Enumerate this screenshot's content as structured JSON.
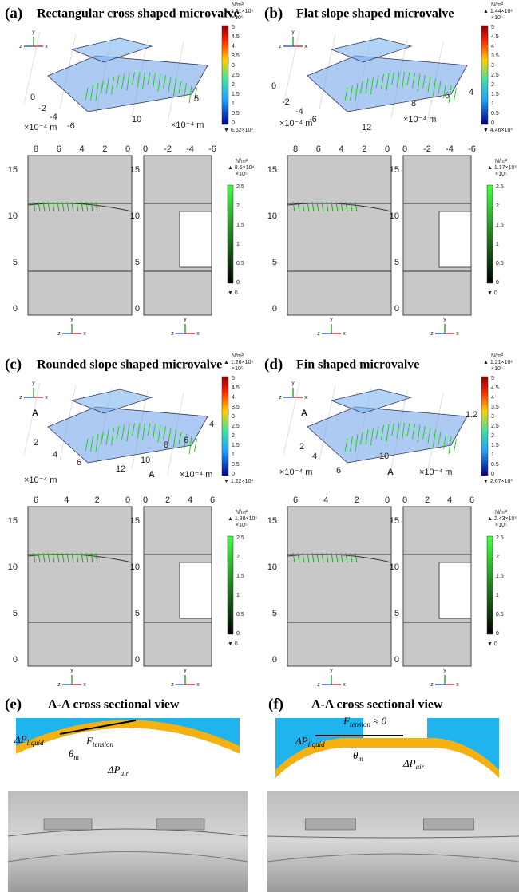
{
  "triad": [
    "y",
    "z",
    "x"
  ],
  "unit": "N/m²",
  "exp": "×10⁵",
  "colorbar3d_ticks": [
    "5",
    "4.5",
    "4",
    "3.5",
    "3",
    "2.5",
    "2",
    "1.5",
    "1",
    "0.5",
    "0"
  ],
  "colorbar2d_ticks": [
    "2.5",
    "2",
    "1.5",
    "1",
    "0.5",
    "0"
  ],
  "section_yticks": [
    "15",
    "10",
    "5",
    "0"
  ],
  "panels": [
    {
      "label": "(a)",
      "title": "Rectangular cross shaped microvalve",
      "axis3d": [
        "0",
        "-2",
        "-4",
        "-6",
        "×10⁻⁴ m",
        "10",
        "5",
        "×10⁻⁴ m"
      ],
      "max3d": "▲ 1.91×10⁶",
      "min3d": "▼ 6.62×10³",
      "max2d": "▲ 8.6×10⁴",
      "min2d": "▼ 0",
      "top_left_ticks": [
        "8",
        "6",
        "4",
        "2",
        "0"
      ],
      "top_right_ticks": [
        "0",
        "-2",
        "-4",
        "-6"
      ]
    },
    {
      "label": "(b)",
      "title": "Flat slope shaped microvalve",
      "axis3d": [
        "0",
        "-2",
        "-4",
        "-6",
        "12",
        "8",
        "6",
        "4",
        "×10⁻⁴ m",
        "×10⁻⁴ m"
      ],
      "max3d": "▲ 1.44×10⁶",
      "min3d": "▼ 4.46×10³",
      "max2d": "▲ 1.17×10⁵",
      "min2d": "▼ 0",
      "top_left_ticks": [
        "8",
        "6",
        "4",
        "2",
        "0"
      ],
      "top_right_ticks": [
        "0",
        "-2",
        "-4",
        "-6"
      ]
    },
    {
      "label": "(c)",
      "title": "Rounded slope shaped microvalve",
      "axis3d": [
        "A",
        "2",
        "4",
        "6",
        "12",
        "10",
        "8",
        "6",
        "4",
        "A",
        "×10⁻⁴ m",
        "×10⁻⁴ m"
      ],
      "max3d": "▲ 1.26×10⁶",
      "min3d": "▼ 1.22×10⁴",
      "max2d": "▲ 1.38×10⁵",
      "min2d": "▼ 0",
      "top_left_ticks": [
        "6",
        "4",
        "2",
        "0"
      ],
      "top_right_ticks": [
        "0",
        "2",
        "4",
        "6"
      ]
    },
    {
      "label": "(d)",
      "title": "Fin shaped microvalve",
      "axis3d": [
        "A",
        "1.2",
        "2",
        "4",
        "6",
        "10",
        "A",
        "×10⁻⁴ m",
        "×10⁻⁴ m"
      ],
      "max3d": "▲ 1.21×10⁶",
      "min3d": "▼ 2.67×10³",
      "max2d": "▲ 2.43×10⁵",
      "min2d": "▼ 0",
      "top_left_ticks": [
        "6",
        "4",
        "2",
        "0"
      ],
      "top_right_ticks": [
        "0",
        "2",
        "4",
        "6"
      ]
    }
  ],
  "sections": [
    {
      "label": "(e)",
      "title": "A-A cross sectional view",
      "annotations": [
        {
          "base": "ΔP",
          "sub": "liquid"
        },
        {
          "base": "F",
          "sub": "tension"
        },
        {
          "base": "θ",
          "sub": "m"
        },
        {
          "base": "ΔP",
          "sub": "air"
        }
      ]
    },
    {
      "label": "(f)",
      "title": "A-A cross sectional view",
      "annotations": [
        {
          "base": "ΔP",
          "sub": "liquid"
        },
        {
          "base": "F",
          "sub": "tension",
          "tail": " ≈ 0"
        },
        {
          "base": "θ",
          "sub": "m"
        },
        {
          "base": "ΔP",
          "sub": "air"
        }
      ]
    }
  ]
}
